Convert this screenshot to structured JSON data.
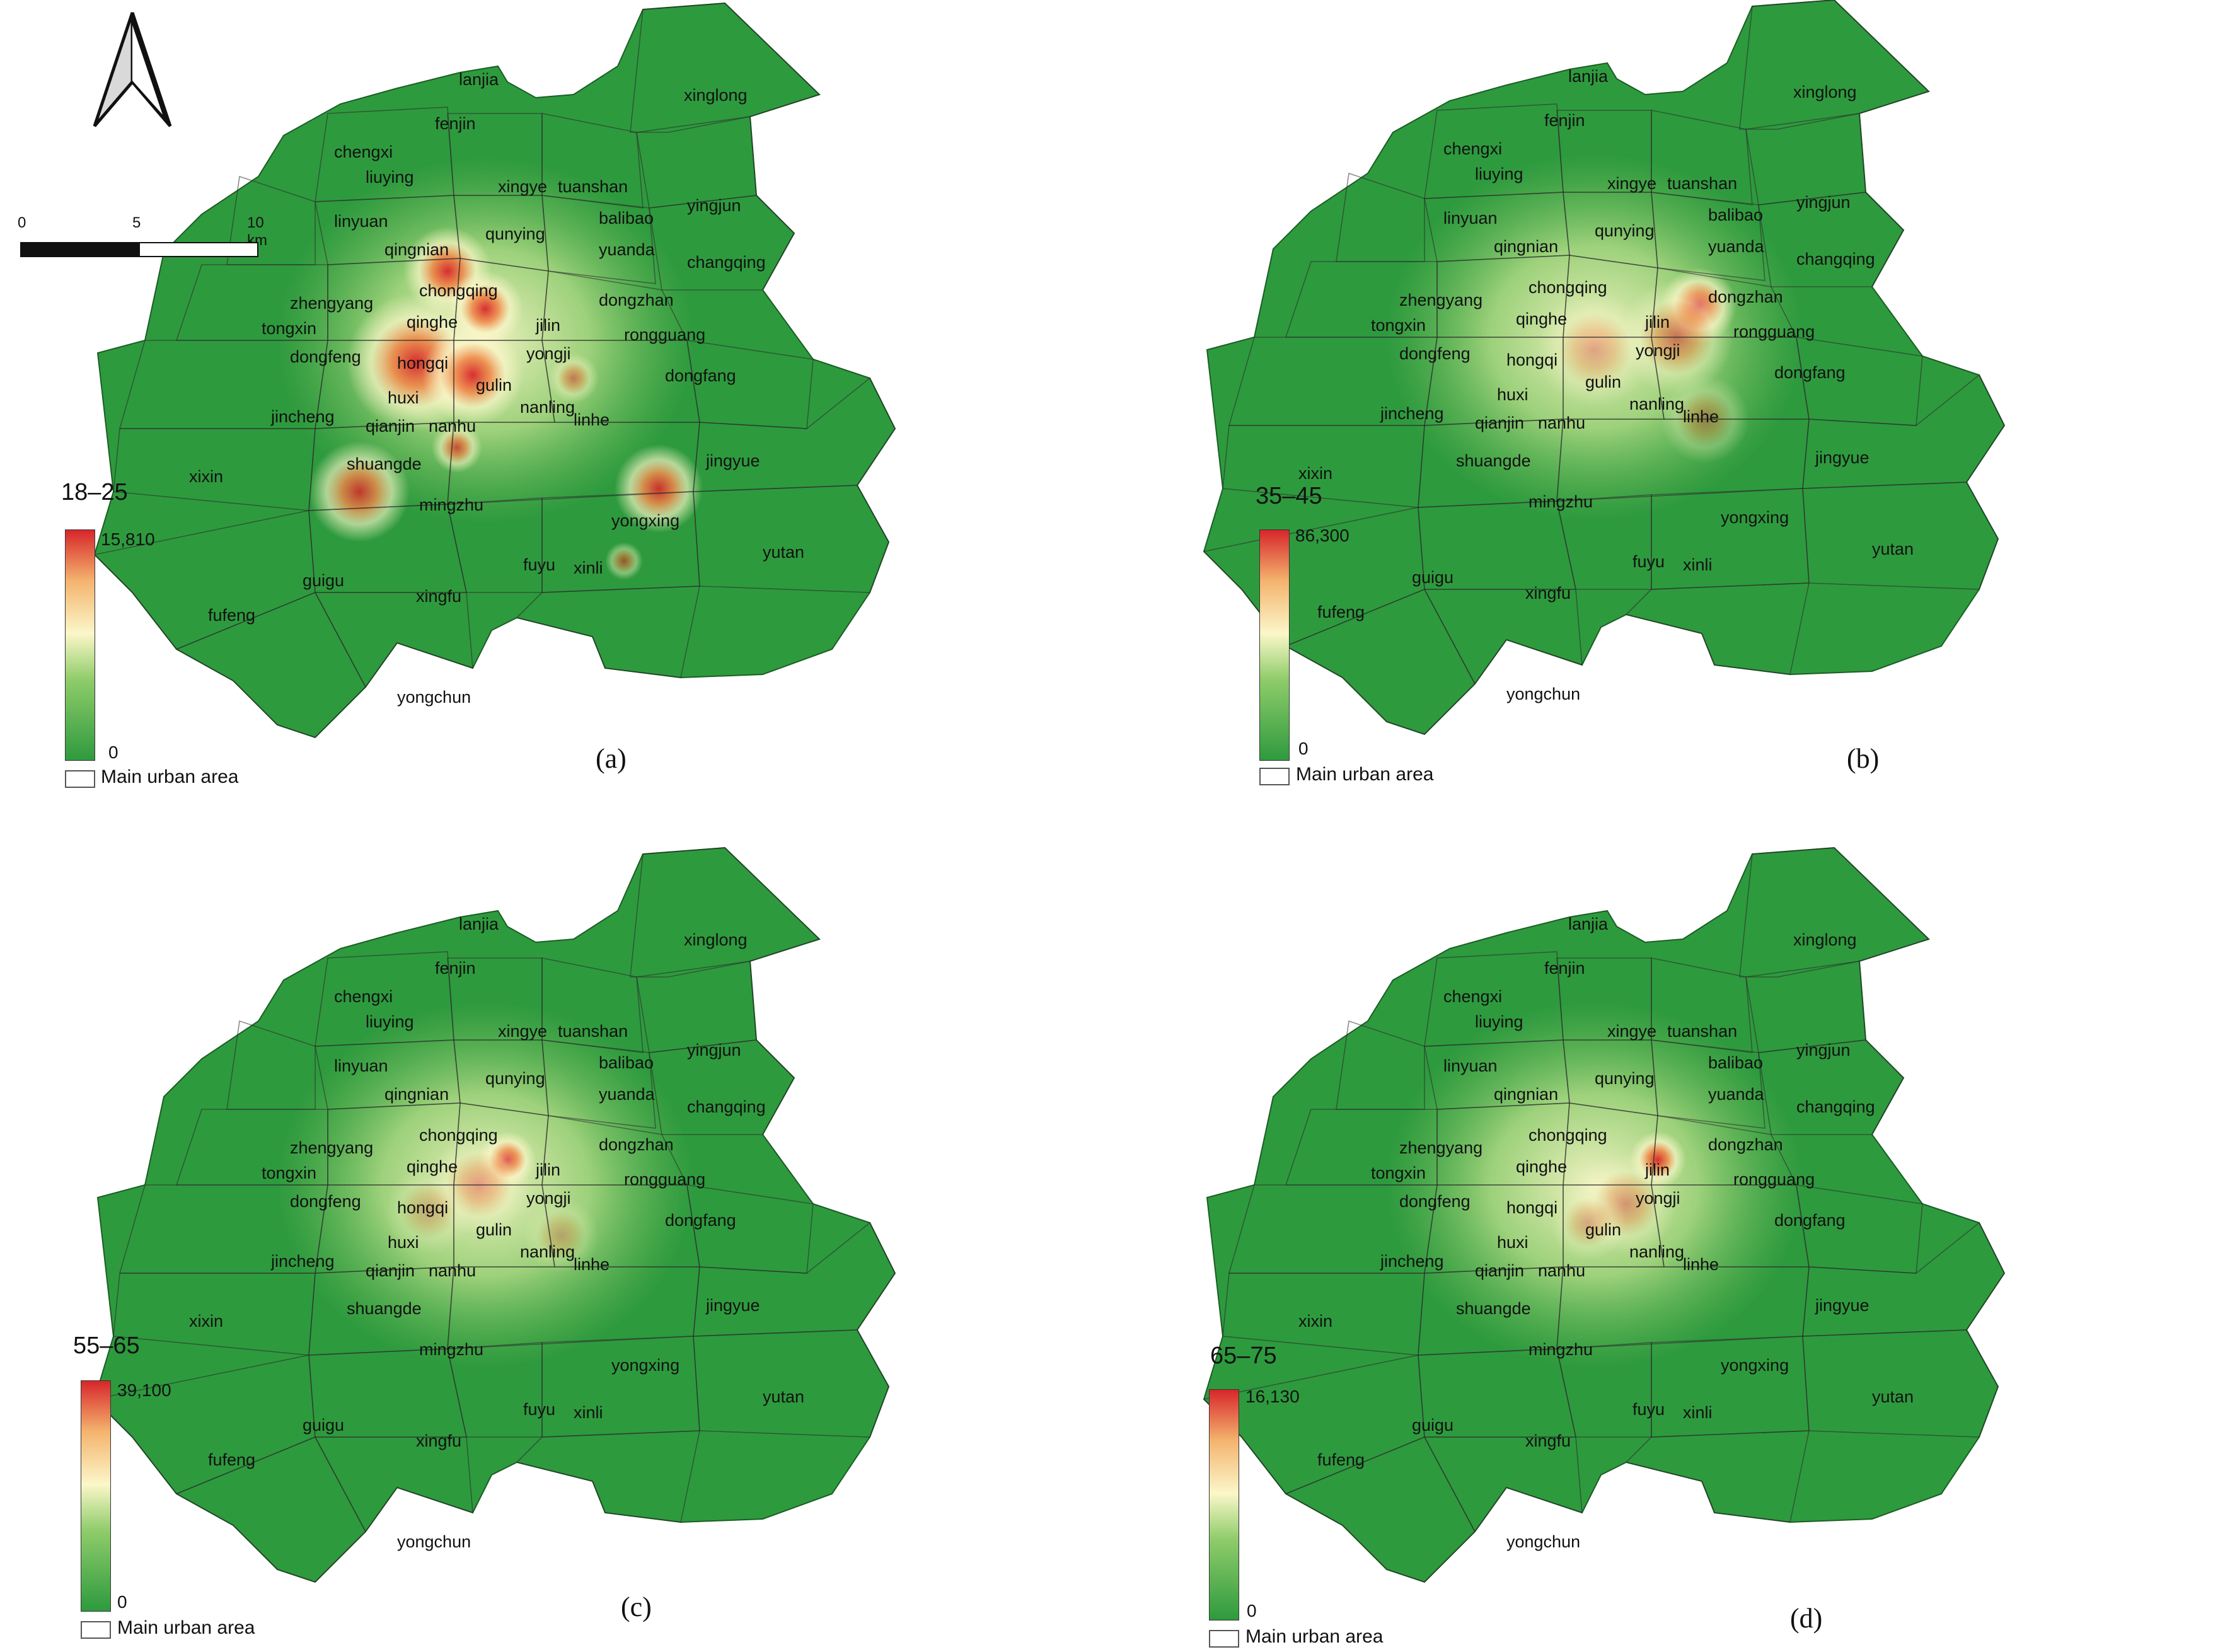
{
  "scale_bar": {
    "ticks": [
      "0",
      "5",
      "10 km"
    ]
  },
  "north_arrow": {
    "icon": "north-arrow-icon"
  },
  "legend_urban_label": "Main urban area",
  "colors": {
    "low": "#2e9a3e",
    "mid": "#fbf7c9",
    "high": "#d7262a"
  },
  "panels": [
    {
      "age_range": "18–25",
      "max": "15,810",
      "min": "0",
      "caption": "(a)"
    },
    {
      "age_range": "35–45",
      "max": "86,300",
      "min": "0",
      "caption": "(b)"
    },
    {
      "age_range": "55–65",
      "max": "39,100",
      "min": "0",
      "caption": "(c)"
    },
    {
      "age_range": "65–75",
      "max": "16,130",
      "min": "0",
      "caption": "(d)"
    }
  ],
  "place_names": [
    "lanjia",
    "xinglong",
    "fenjin",
    "chengxi",
    "liuying",
    "xingye",
    "tuanshan",
    "balibao",
    "yingjun",
    "linyuan",
    "qingnian",
    "qunying",
    "yuanda",
    "changqing",
    "zhengyang",
    "chongqing",
    "dongzhan",
    "tongxin",
    "qinghe",
    "jilin",
    "rongguang",
    "dongfeng",
    "hongqi",
    "yongji",
    "gulin",
    "dongfang",
    "jincheng",
    "huxi",
    "nanling",
    "linhe",
    "qianjin",
    "nanhu",
    "jingyue",
    "xixin",
    "shuangde",
    "mingzhu",
    "yongxing",
    "yutan",
    "fuyu",
    "xinli",
    "guigu",
    "xingfu",
    "fufeng",
    "yongchun"
  ]
}
